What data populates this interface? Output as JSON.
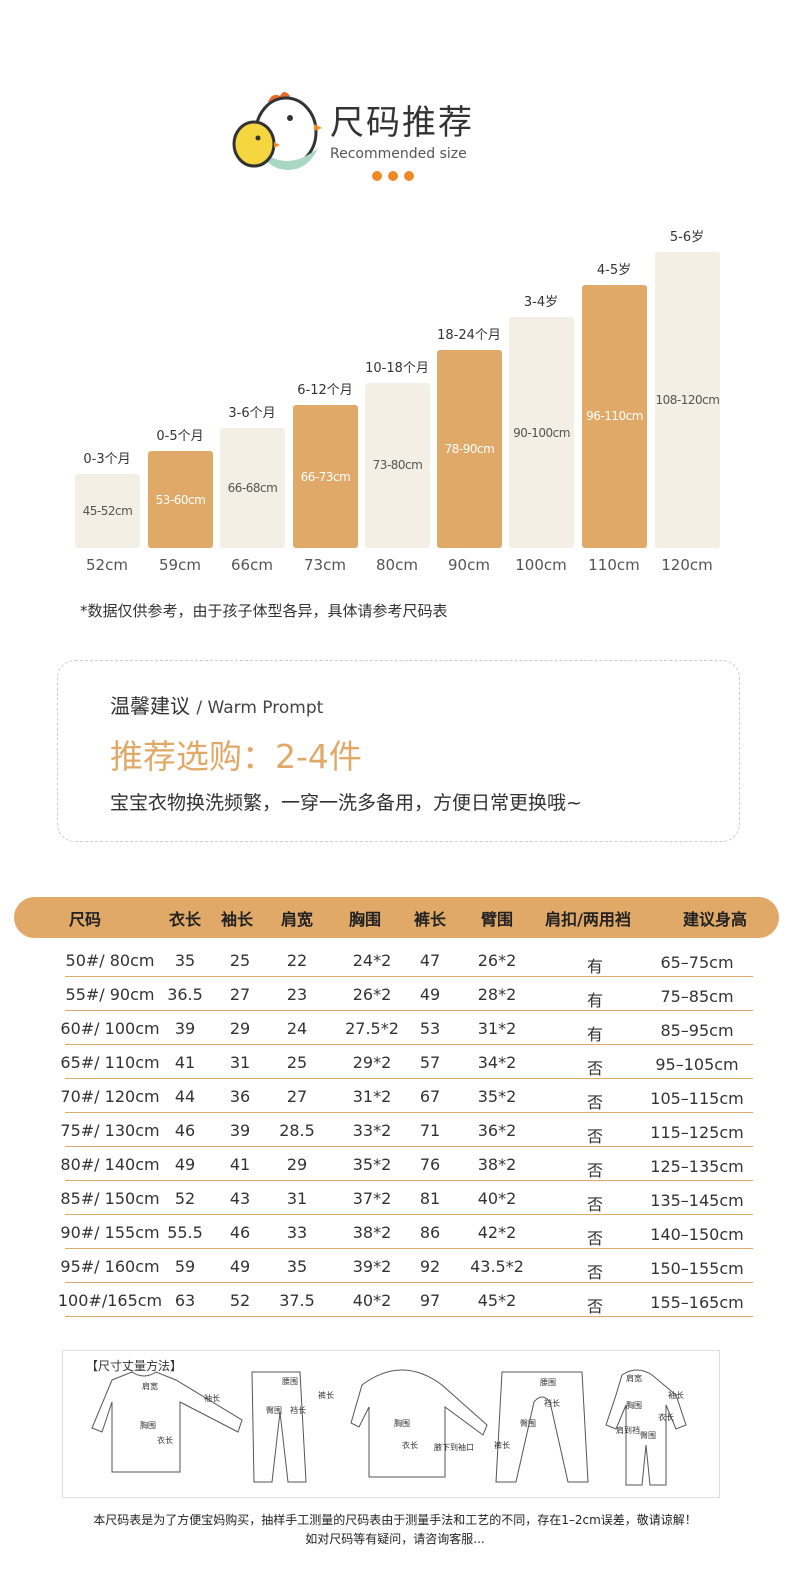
{
  "header": {
    "title": "尺码推荐",
    "subtitle": "Recommended size",
    "dot_color": "#f08a24"
  },
  "size_bars": [
    {
      "age": "0-3个月",
      "range": "45-52cm",
      "size": "52cm",
      "highlight": false,
      "height_cm": 52
    },
    {
      "age": "0-5个月",
      "range": "53-60cm",
      "size": "59cm",
      "highlight": true,
      "height_cm": 59
    },
    {
      "age": "3-6个月",
      "range": "66-68cm",
      "size": "66cm",
      "highlight": false,
      "height_cm": 66
    },
    {
      "age": "6-12个月",
      "range": "66-73cm",
      "size": "73cm",
      "highlight": true,
      "height_cm": 73
    },
    {
      "age": "10-18个月",
      "range": "73-80cm",
      "size": "80cm",
      "highlight": false,
      "height_cm": 80
    },
    {
      "age": "18-24个月",
      "range": "78-90cm",
      "size": "90cm",
      "highlight": true,
      "height_cm": 90
    },
    {
      "age": "3-4岁",
      "range": "90-100cm",
      "size": "100cm",
      "highlight": false,
      "height_cm": 100
    },
    {
      "age": "4-5岁",
      "range": "96-110cm",
      "size": "110cm",
      "highlight": true,
      "height_cm": 110
    },
    {
      "age": "5-6岁",
      "range": "108-120cm",
      "size": "120cm",
      "highlight": false,
      "height_cm": 120
    }
  ],
  "note": "*数据仅供参考，由于孩子体型各异，具体请参考尺码表",
  "prompt": {
    "title": "温馨建议",
    "title_en": "/ Warm Prompt",
    "recommend": "推荐选购：2-4件",
    "desc": "宝宝衣物换洗频繁，一穿一洗多备用，方便日常更换哦~"
  },
  "table": {
    "headers": [
      "尺码",
      "衣长",
      "袖长",
      "肩宽",
      "胸围",
      "裤长",
      "臂围",
      "肩扣/两用裆",
      "建议身高"
    ],
    "rows": [
      [
        "50#/  80cm",
        "35",
        "25",
        "22",
        "24*2",
        "47",
        "26*2",
        "有",
        "65–75cm"
      ],
      [
        "55#/  90cm",
        "36.5",
        "27",
        "23",
        "26*2",
        "49",
        "28*2",
        "有",
        "75–85cm"
      ],
      [
        "60#/ 100cm",
        "39",
        "29",
        "24",
        "27.5*2",
        "53",
        "31*2",
        "有",
        "85–95cm"
      ],
      [
        "65#/ 110cm",
        "41",
        "31",
        "25",
        "29*2",
        "57",
        "34*2",
        "否",
        "95–105cm"
      ],
      [
        "70#/ 120cm",
        "44",
        "36",
        "27",
        "31*2",
        "67",
        "35*2",
        "否",
        "105–115cm"
      ],
      [
        "75#/ 130cm",
        "46",
        "39",
        "28.5",
        "33*2",
        "71",
        "36*2",
        "否",
        "115–125cm"
      ],
      [
        "80#/ 140cm",
        "49",
        "41",
        "29",
        "35*2",
        "76",
        "38*2",
        "否",
        "125–135cm"
      ],
      [
        "85#/ 150cm",
        "52",
        "43",
        "31",
        "37*2",
        "81",
        "40*2",
        "否",
        "135–145cm"
      ],
      [
        "90#/ 155cm",
        "55.5",
        "46",
        "33",
        "38*2",
        "86",
        "42*2",
        "否",
        "140–150cm"
      ],
      [
        "95#/ 160cm",
        "59",
        "49",
        "35",
        "39*2",
        "92",
        "43.5*2",
        "否",
        "150–155cm"
      ],
      [
        "100#/165cm",
        "63",
        "52",
        "37.5",
        "40*2",
        "97",
        "45*2",
        "否",
        "155–165cm"
      ]
    ]
  },
  "measure": {
    "title": "【尺寸丈量方法】",
    "labels": [
      "肩宽",
      "袖长",
      "胸围",
      "衣长",
      "腰围",
      "臀围",
      "裆长",
      "裤长",
      "胸围",
      "衣长",
      "腋下到袖口",
      "腰围",
      "裆长",
      "臀围",
      "裤长",
      "肩宽",
      "袖长",
      "胸围",
      "衣长",
      "肩到裆",
      "臀围"
    ]
  },
  "footer": [
    "本尺码表是为了方便宝妈购买，抽样手工测量的尺码表由于测量手法和工艺的不同，存在1–2cm误差，敬请谅解！",
    "如对尺码等有疑问，请咨询客服..."
  ]
}
